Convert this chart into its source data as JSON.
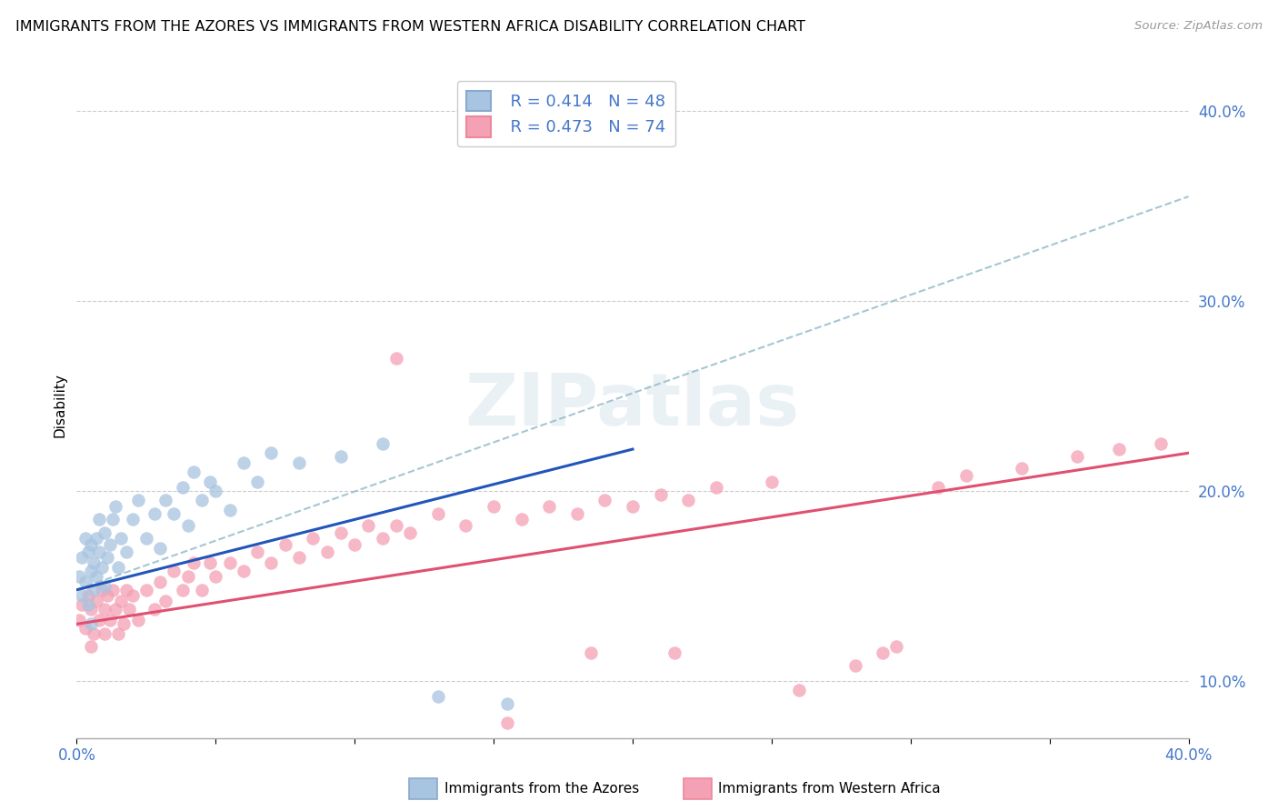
{
  "title": "IMMIGRANTS FROM THE AZORES VS IMMIGRANTS FROM WESTERN AFRICA DISABILITY CORRELATION CHART",
  "source": "Source: ZipAtlas.com",
  "ylabel": "Disability",
  "xlim": [
    0.0,
    0.4
  ],
  "ylim": [
    0.07,
    0.42
  ],
  "xtick_vals": [
    0.0,
    0.05,
    0.1,
    0.15,
    0.2,
    0.25,
    0.3,
    0.35,
    0.4
  ],
  "ytick_vals": [
    0.1,
    0.2,
    0.3,
    0.4
  ],
  "legend_r1": "R = 0.414",
  "legend_n1": "N = 48",
  "legend_r2": "R = 0.473",
  "legend_n2": "N = 74",
  "azores_color": "#a8c4e0",
  "africa_color": "#f4a0b5",
  "azores_line_color": "#2255bb",
  "africa_line_color": "#e05070",
  "dashed_line_color": "#90b8c8",
  "watermark_text": "ZIPatlas",
  "az_line_x0": 0.0,
  "az_line_y0": 0.148,
  "az_line_x1": 0.2,
  "az_line_y1": 0.222,
  "af_line_x0": 0.0,
  "af_line_y0": 0.13,
  "af_line_x1": 0.4,
  "af_line_y1": 0.22,
  "dash_line_x0": 0.0,
  "dash_line_y0": 0.148,
  "dash_line_x1": 0.4,
  "dash_line_y1": 0.355,
  "azores_x": [
    0.001,
    0.002,
    0.002,
    0.003,
    0.003,
    0.004,
    0.004,
    0.005,
    0.005,
    0.005,
    0.006,
    0.006,
    0.007,
    0.007,
    0.008,
    0.008,
    0.009,
    0.01,
    0.01,
    0.011,
    0.012,
    0.013,
    0.014,
    0.015,
    0.016,
    0.018,
    0.02,
    0.022,
    0.025,
    0.028,
    0.03,
    0.032,
    0.035,
    0.038,
    0.04,
    0.042,
    0.045,
    0.048,
    0.05,
    0.055,
    0.06,
    0.065,
    0.07,
    0.08,
    0.095,
    0.11,
    0.13,
    0.155
  ],
  "azores_y": [
    0.155,
    0.145,
    0.165,
    0.152,
    0.175,
    0.14,
    0.168,
    0.13,
    0.158,
    0.172,
    0.148,
    0.162,
    0.175,
    0.155,
    0.168,
    0.185,
    0.16,
    0.15,
    0.178,
    0.165,
    0.172,
    0.185,
    0.192,
    0.16,
    0.175,
    0.168,
    0.185,
    0.195,
    0.175,
    0.188,
    0.17,
    0.195,
    0.188,
    0.202,
    0.182,
    0.21,
    0.195,
    0.205,
    0.2,
    0.19,
    0.215,
    0.205,
    0.22,
    0.215,
    0.218,
    0.225,
    0.092,
    0.088
  ],
  "africa_x": [
    0.001,
    0.002,
    0.003,
    0.004,
    0.005,
    0.005,
    0.006,
    0.007,
    0.008,
    0.009,
    0.01,
    0.01,
    0.011,
    0.012,
    0.013,
    0.014,
    0.015,
    0.016,
    0.017,
    0.018,
    0.019,
    0.02,
    0.022,
    0.025,
    0.028,
    0.03,
    0.032,
    0.035,
    0.038,
    0.04,
    0.042,
    0.045,
    0.048,
    0.05,
    0.055,
    0.06,
    0.065,
    0.07,
    0.075,
    0.08,
    0.085,
    0.09,
    0.095,
    0.1,
    0.105,
    0.11,
    0.115,
    0.12,
    0.13,
    0.14,
    0.15,
    0.16,
    0.17,
    0.18,
    0.19,
    0.2,
    0.21,
    0.22,
    0.23,
    0.25,
    0.26,
    0.28,
    0.295,
    0.31,
    0.32,
    0.34,
    0.36,
    0.375,
    0.39,
    0.115,
    0.155,
    0.185,
    0.215,
    0.29
  ],
  "africa_y": [
    0.132,
    0.14,
    0.128,
    0.145,
    0.118,
    0.138,
    0.125,
    0.142,
    0.132,
    0.148,
    0.125,
    0.138,
    0.145,
    0.132,
    0.148,
    0.138,
    0.125,
    0.142,
    0.13,
    0.148,
    0.138,
    0.145,
    0.132,
    0.148,
    0.138,
    0.152,
    0.142,
    0.158,
    0.148,
    0.155,
    0.162,
    0.148,
    0.162,
    0.155,
    0.162,
    0.158,
    0.168,
    0.162,
    0.172,
    0.165,
    0.175,
    0.168,
    0.178,
    0.172,
    0.182,
    0.175,
    0.182,
    0.178,
    0.188,
    0.182,
    0.192,
    0.185,
    0.192,
    0.188,
    0.195,
    0.192,
    0.198,
    0.195,
    0.202,
    0.205,
    0.095,
    0.108,
    0.118,
    0.202,
    0.208,
    0.212,
    0.218,
    0.222,
    0.225,
    0.27,
    0.078,
    0.115,
    0.115,
    0.115
  ]
}
